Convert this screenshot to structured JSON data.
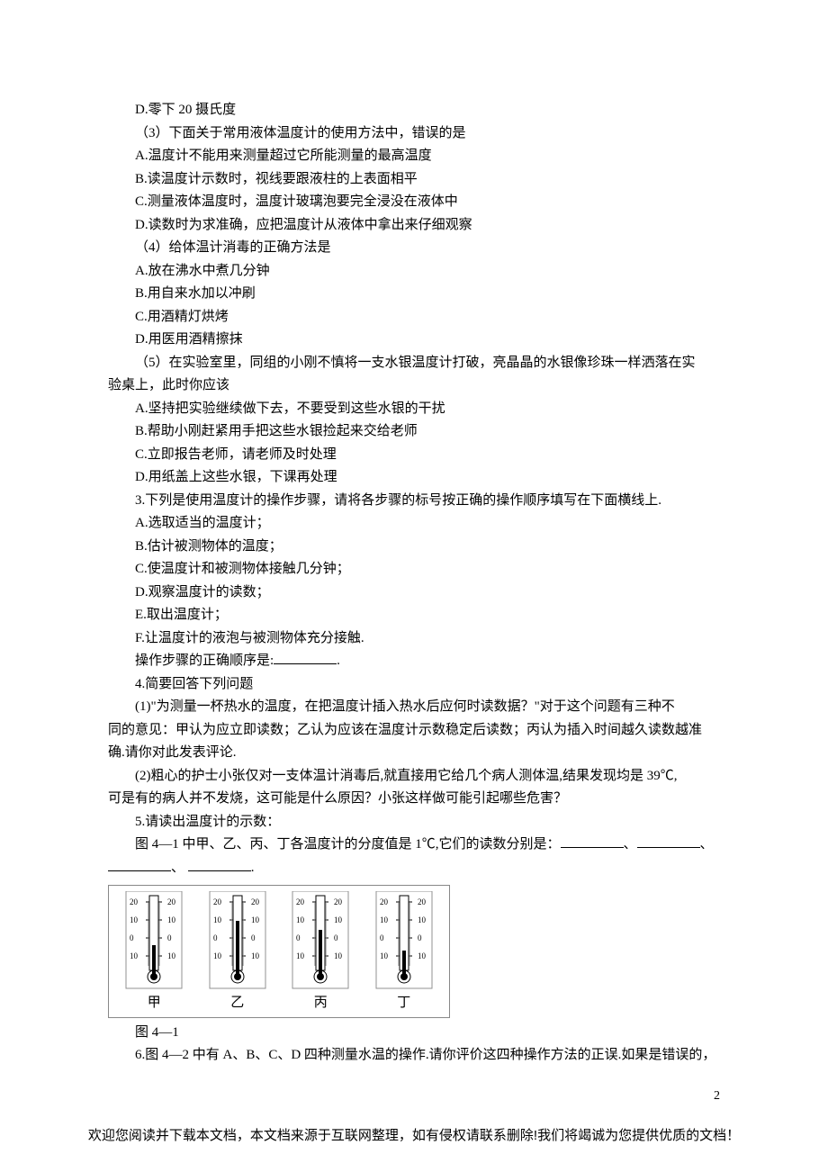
{
  "q2_optD": "D.零下 20 摄氏度",
  "q3_stem": "（3）下面关于常用液体温度计的使用方法中，错误的是",
  "q3_A": "A.温度计不能用来测量超过它所能测量的最高温度",
  "q3_B": "B.读温度计示数时，视线要跟液柱的上表面相平",
  "q3_C": "C.测量液体温度时，温度计玻璃泡要完全浸没在液体中",
  "q3_D": "D.读数时为求准确，应把温度计从液体中拿出来仔细观察",
  "q4_stem": "（4）给体温计消毒的正确方法是",
  "q4_A": "A.放在沸水中煮几分钟",
  "q4_B": "B.用自来水加以冲刷",
  "q4_C": "C.用酒精灯烘烤",
  "q4_D": "D.用医用酒精擦抹",
  "q5_stem_a": "（5）在实验室里，同组的小刚不慎将一支水银温度计打破，亮晶晶的水银像珍珠一样洒落在实",
  "q5_stem_b": "验桌上，此时你应该",
  "q5_A": "A.坚持把实验继续做下去，不要受到这些水银的干扰",
  "q5_B": "B.帮助小刚赶紧用手把这些水银捡起来交给老师",
  "q5_C": "C.立即报告老师，请老师及时处理",
  "q5_D": "D.用纸盖上这些水银，下课再处理",
  "q_seq_stem": "3.下列是使用温度计的操作步骤，请将各步骤的标号按正确的操作顺序填写在下面横线上.",
  "seq_A": "A.选取适当的温度计；",
  "seq_B": "B.估计被测物体的温度；",
  "seq_C": "C.使温度计和被测物体接触几分钟；",
  "seq_D": "D.观察温度计的读数；",
  "seq_E": "E.取出温度计；",
  "seq_F": "F.让温度计的液泡与被测物体充分接触.",
  "seq_ans_label": "操作步骤的正确顺序是:",
  "q4_head": "4.简要回答下列问题",
  "q4_1a": "(1)\"为测量一杯热水的温度，在把温度计插入热水后应何时读数据？\"对于这个问题有三种不",
  "q4_1b": "同的意见：甲认为应立即读数；乙认为应该在温度计示数稳定后读数；丙认为插入时间越久读数越准",
  "q4_1c": "确.请你对此发表评论.",
  "q4_2a": "(2)粗心的护士小张仅对一支体温计消毒后,就直接用它给几个病人测体温,结果发现均是 39℃,",
  "q4_2b": "可是有的病人并不发烧，这可能是什么原因？小张这样做可能引起哪些危害？",
  "q5_head": "5.请读出温度计的示数：",
  "q5_line1": "图 4—1 中甲、乙、丙、丁各温度计的分度值是 1℃,它们的读数分别是：",
  "fig_caption": "图 4—1",
  "q6_line": "6.图 4—2 中有 A、B、C、D 四种测量水温的操作.请你评价这四种操作方法的正误.如果是错误的，",
  "page_num": "2",
  "footer": "欢迎您阅读并下载本文档，本文档来源于互联网整理，如有侵权请联系删除!我们将竭诚为您提供优质的文档！",
  "thermo": {
    "labels": [
      "甲",
      "乙",
      "丙",
      "丁"
    ],
    "ticks": [
      "20",
      "10",
      "0",
      "10"
    ],
    "scale_color": "#000000",
    "column_color": "#000000",
    "cap_color": "#333333",
    "border_color": "#909090",
    "heights": [
      28,
      55,
      45,
      22
    ]
  }
}
